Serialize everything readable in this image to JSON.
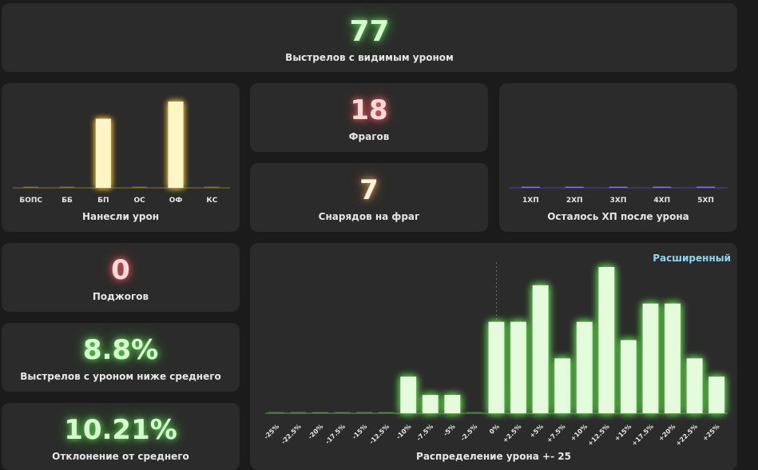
{
  "top": {
    "value": "77",
    "label": "Выстрелов с видимым уроном"
  },
  "frags": {
    "value": "18",
    "label": "Фрагов"
  },
  "shells_per_frag": {
    "value": "7",
    "label": "Снарядов на фраг"
  },
  "fires": {
    "value": "0",
    "label": "Поджогов"
  },
  "below_avg": {
    "value": "8.8%",
    "label": "Выстрелов с уроном ниже среднего"
  },
  "deviation": {
    "value": "10.21%",
    "label": "Отклонение от среднего"
  },
  "damage_link": "Расширенный",
  "colors": {
    "yellow": "#fff6c8",
    "green": "#e4fbdc",
    "purple": "#6f63c9"
  },
  "chart_data": [
    {
      "type": "bar",
      "id": "damage-dealt",
      "title": "Нанесли урон",
      "categories": [
        "БОПС",
        "ББ",
        "БП",
        "ОС",
        "ОФ",
        "КС"
      ],
      "values": [
        0,
        0,
        80,
        0,
        100,
        0
      ],
      "ylim": [
        0,
        100
      ]
    },
    {
      "type": "bar",
      "id": "hp-left",
      "title": "Осталось ХП после урона",
      "categories": [
        "1ХП",
        "2ХП",
        "3ХП",
        "4ХП",
        "5ХП"
      ],
      "values": [
        0,
        0,
        0,
        0,
        0
      ],
      "ylim": [
        0,
        100
      ]
    },
    {
      "type": "bar",
      "id": "damage-distribution",
      "title": "Распределение урона +- 25",
      "categories": [
        "-25%",
        "-22.5%",
        "-20%",
        "-17.5%",
        "-15%",
        "-12.5%",
        "-10%",
        "-7.5%",
        "-5%",
        "-2.5%",
        "0%",
        "+2.5%",
        "+5%",
        "+7.5%",
        "+10%",
        "+12.5%",
        "+15%",
        "+17.5%",
        "+20%",
        "+22.5%",
        "+25%"
      ],
      "values": [
        0,
        0,
        0,
        0,
        0,
        0,
        2,
        1,
        1,
        0,
        5,
        5,
        7,
        3,
        5,
        8,
        4,
        6,
        6,
        3,
        2
      ],
      "ylim": [
        0,
        8
      ],
      "reference_line": "0%"
    }
  ]
}
